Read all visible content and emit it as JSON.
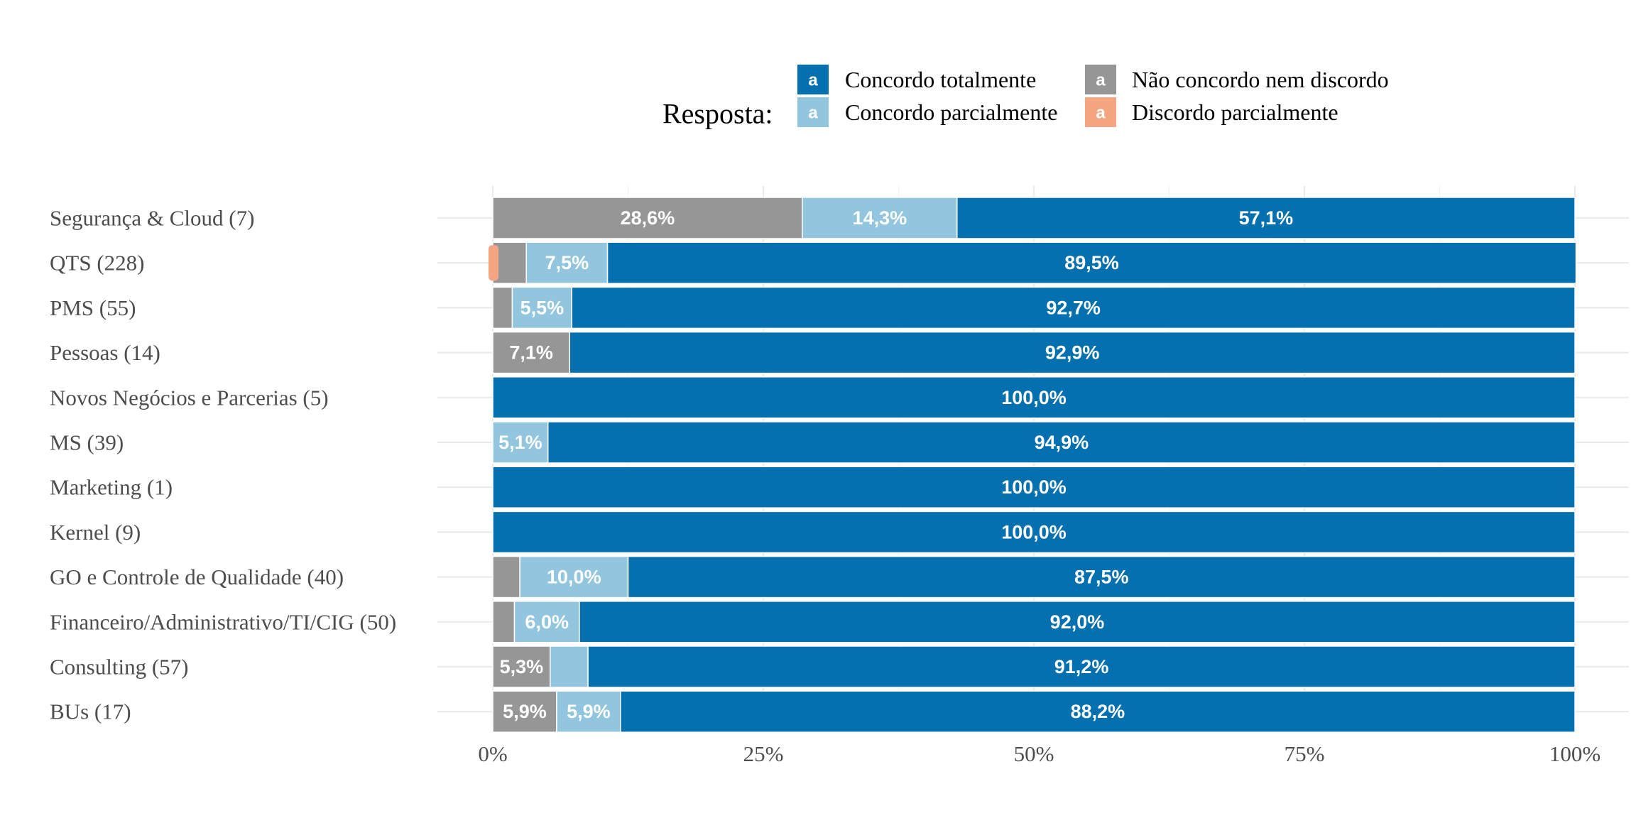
{
  "chart_data": {
    "type": "bar",
    "orientation": "horizontal",
    "stacked": true,
    "legend": {
      "title": "Resposta:",
      "position": "top",
      "key_glyph": "a",
      "items": [
        {
          "label": "Concordo totalmente",
          "color": "#0570b0"
        },
        {
          "label": "Concordo parcialmente",
          "color": "#92c5de"
        },
        {
          "label": "Não concordo nem discordo",
          "color": "#969696"
        },
        {
          "label": "Discordo parcialmente",
          "color": "#f4a582"
        }
      ]
    },
    "xlim": [
      0,
      100
    ],
    "x_ticks": [
      0,
      25,
      50,
      75,
      100
    ],
    "x_tick_labels": [
      "0%",
      "25%",
      "50%",
      "75%",
      "100%"
    ],
    "grid": true,
    "stack_order": [
      "Não concordo nem discordo",
      "Concordo parcialmente",
      "Concordo totalmente"
    ],
    "categories": [
      "Segurança & Cloud (7)",
      "QTS (228)",
      "PMS (55)",
      "Pessoas (14)",
      "Novos Negócios e Parcerias (5)",
      "MS (39)",
      "Marketing (1)",
      "Kernel (9)",
      "GO e Controle de Qualidade (40)",
      "Financeiro/Administrativo/TI/CIG (50)",
      "Consulting (57)",
      "BUs (17)"
    ],
    "series": [
      {
        "name": "Não concordo nem discordo",
        "color": "#969696",
        "values": [
          28.6,
          3.1,
          1.8,
          7.1,
          0,
          0,
          0,
          0,
          2.5,
          2.0,
          5.3,
          5.9
        ],
        "labels": [
          "28,6%",
          "",
          "",
          "7,1%",
          "",
          "",
          "",
          "",
          "",
          "",
          "5,3%",
          "5,9%"
        ]
      },
      {
        "name": "Concordo parcialmente",
        "color": "#92c5de",
        "values": [
          14.3,
          7.5,
          5.5,
          0,
          0,
          5.1,
          0,
          0,
          10.0,
          6.0,
          3.5,
          5.9
        ],
        "labels": [
          "14,3%",
          "7,5%",
          "5,5%",
          "",
          "",
          "5,1%",
          "",
          "",
          "10,0%",
          "6,0%",
          "",
          "5,9%"
        ]
      },
      {
        "name": "Concordo totalmente",
        "color": "#0570b0",
        "values": [
          57.1,
          89.5,
          92.7,
          92.9,
          100.0,
          94.9,
          100.0,
          100.0,
          87.5,
          92.0,
          91.2,
          88.2
        ],
        "labels": [
          "57,1%",
          "89,5%",
          "92,7%",
          "92,9%",
          "100,0%",
          "94,9%",
          "100,0%",
          "100,0%",
          "87,5%",
          "92,0%",
          "91,2%",
          "88,2%"
        ]
      }
    ],
    "markers": [
      {
        "category": "QTS (228)",
        "series": "Discordo parcialmente",
        "value": 0.4,
        "color": "#f4a582"
      }
    ]
  }
}
